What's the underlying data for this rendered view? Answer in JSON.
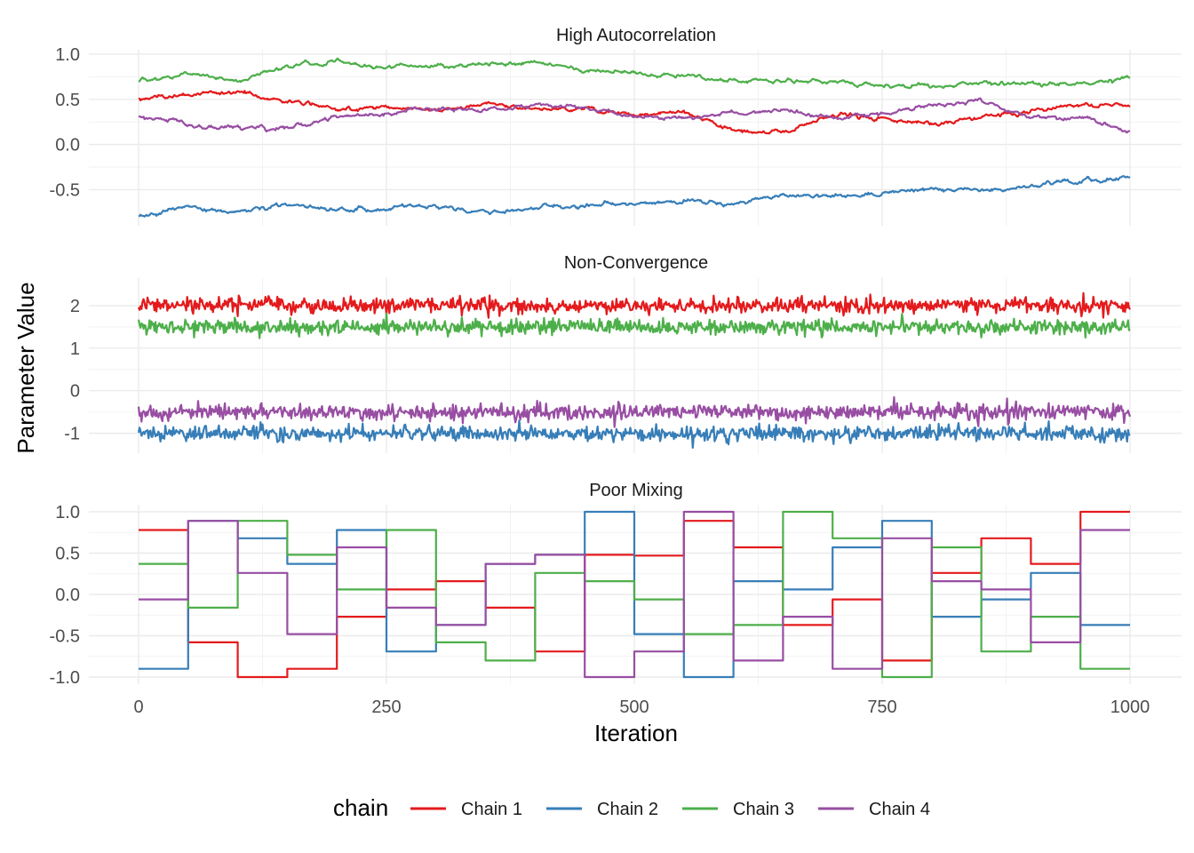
{
  "chart_data": {
    "type": "line",
    "xlabel": "Iteration",
    "ylabel": "Parameter Value",
    "xlim": [
      0,
      1000
    ],
    "x_ticks": [
      "0",
      "250",
      "500",
      "750",
      "1000"
    ],
    "x_tick_values": [
      0,
      250,
      500,
      750,
      1000
    ],
    "grid": true,
    "legend": {
      "title": "chain",
      "placement": "bottom",
      "entries": [
        "Chain 1",
        "Chain 2",
        "Chain 3",
        "Chain 4"
      ]
    },
    "colors": [
      "#e41a1c",
      "#377eb8",
      "#4daf4a",
      "#984ea3"
    ],
    "panels": [
      {
        "title": "High Autocorrelation",
        "ylim": [
          -0.82,
          0.97
        ],
        "y_ticks": [
          "1.0",
          "0.5",
          "0.0",
          "-0.5"
        ],
        "y_tick_values": [
          1.0,
          0.5,
          0.0,
          -0.5
        ],
        "series": [
          {
            "name": "Chain 1",
            "x": [
              0,
              50,
              100,
              150,
              200,
              250,
              300,
              350,
              400,
              450,
              500,
              550,
              600,
              650,
              700,
              750,
              800,
              850,
              900,
              950,
              1000
            ],
            "values": [
              0.5,
              0.55,
              0.58,
              0.48,
              0.4,
              0.42,
              0.38,
              0.45,
              0.4,
              0.4,
              0.33,
              0.35,
              0.15,
              0.13,
              0.33,
              0.3,
              0.22,
              0.3,
              0.38,
              0.45,
              0.43
            ]
          },
          {
            "name": "Chain 2",
            "x": [
              0,
              50,
              100,
              150,
              200,
              250,
              300,
              350,
              400,
              450,
              500,
              550,
              600,
              650,
              700,
              750,
              800,
              850,
              900,
              950,
              1000
            ],
            "values": [
              -0.8,
              -0.7,
              -0.75,
              -0.65,
              -0.72,
              -0.71,
              -0.7,
              -0.75,
              -0.7,
              -0.68,
              -0.65,
              -0.62,
              -0.65,
              -0.55,
              -0.58,
              -0.55,
              -0.5,
              -0.52,
              -0.45,
              -0.4,
              -0.37
            ]
          },
          {
            "name": "Chain 3",
            "x": [
              0,
              50,
              100,
              150,
              200,
              250,
              300,
              350,
              400,
              450,
              500,
              550,
              600,
              650,
              700,
              750,
              800,
              850,
              900,
              950,
              1000
            ],
            "values": [
              0.71,
              0.78,
              0.7,
              0.88,
              0.92,
              0.85,
              0.88,
              0.9,
              0.9,
              0.82,
              0.78,
              0.75,
              0.7,
              0.72,
              0.68,
              0.65,
              0.65,
              0.68,
              0.68,
              0.65,
              0.75
            ]
          },
          {
            "name": "Chain 4",
            "x": [
              0,
              50,
              100,
              150,
              200,
              250,
              300,
              350,
              400,
              450,
              500,
              550,
              600,
              650,
              700,
              750,
              800,
              850,
              900,
              950,
              1000
            ],
            "values": [
              0.32,
              0.22,
              0.18,
              0.18,
              0.3,
              0.35,
              0.4,
              0.38,
              0.42,
              0.4,
              0.32,
              0.3,
              0.33,
              0.38,
              0.3,
              0.35,
              0.42,
              0.48,
              0.32,
              0.28,
              0.17
            ]
          }
        ]
      },
      {
        "title": "Non-Convergence",
        "ylim": [
          -1.3,
          2.5
        ],
        "y_ticks": [
          "2",
          "1",
          "0",
          "-1"
        ],
        "y_tick_values": [
          2,
          1,
          0,
          -1
        ],
        "series": [
          {
            "name": "Chain 1",
            "x": [
              0,
              1000
            ],
            "values": [
              2.0,
              2.0
            ],
            "noise_sd": 0.09
          },
          {
            "name": "Chain 2",
            "x": [
              0,
              1000
            ],
            "values": [
              -1.0,
              -1.0
            ],
            "noise_sd": 0.09
          },
          {
            "name": "Chain 3",
            "x": [
              0,
              1000
            ],
            "values": [
              1.5,
              1.5
            ],
            "noise_sd": 0.09
          },
          {
            "name": "Chain 4",
            "x": [
              0,
              1000
            ],
            "values": [
              -0.5,
              -0.5
            ],
            "noise_sd": 0.09
          }
        ]
      },
      {
        "title": "Poor Mixing",
        "ylim": [
          -1.0,
          1.0
        ],
        "y_ticks": [
          "1.0",
          "0.5",
          "0.0",
          "-0.5",
          "-1.0"
        ],
        "y_tick_values": [
          1.0,
          0.5,
          0.0,
          -0.5,
          -1.0
        ],
        "step": true,
        "step_x": [
          0,
          50,
          100,
          150,
          200,
          250,
          300,
          350,
          400,
          450,
          500,
          550,
          600,
          650,
          700,
          750,
          800,
          850,
          900,
          950,
          1000
        ],
        "series": [
          {
            "name": "Chain 1",
            "values": [
              0.78,
              -0.58,
              -1.0,
              -0.9,
              -0.27,
              0.06,
              0.16,
              -0.16,
              -0.69,
              0.48,
              0.47,
              0.89,
              0.57,
              -0.37,
              -0.06,
              -0.8,
              0.26,
              0.68,
              0.37,
              1.0
            ]
          },
          {
            "name": "Chain 2",
            "values": [
              -0.9,
              0.89,
              0.68,
              0.37,
              0.78,
              -0.69,
              -0.37,
              0.37,
              0.48,
              1.0,
              -0.48,
              -1.0,
              0.16,
              0.06,
              0.57,
              0.89,
              -0.27,
              -0.06,
              0.26,
              -0.37
            ]
          },
          {
            "name": "Chain 3",
            "values": [
              0.37,
              -0.16,
              0.89,
              0.48,
              0.06,
              0.78,
              -0.58,
              -0.8,
              0.26,
              0.16,
              -0.06,
              -0.48,
              -0.37,
              1.0,
              0.68,
              -1.0,
              0.57,
              -0.69,
              -0.27,
              -0.9
            ]
          },
          {
            "name": "Chain 4",
            "values": [
              -0.06,
              0.89,
              0.26,
              -0.48,
              0.57,
              -0.16,
              -0.37,
              0.37,
              0.48,
              -1.0,
              -0.69,
              1.0,
              -0.8,
              -0.27,
              -0.9,
              0.68,
              0.16,
              0.06,
              -0.58,
              0.78
            ]
          }
        ]
      }
    ]
  }
}
